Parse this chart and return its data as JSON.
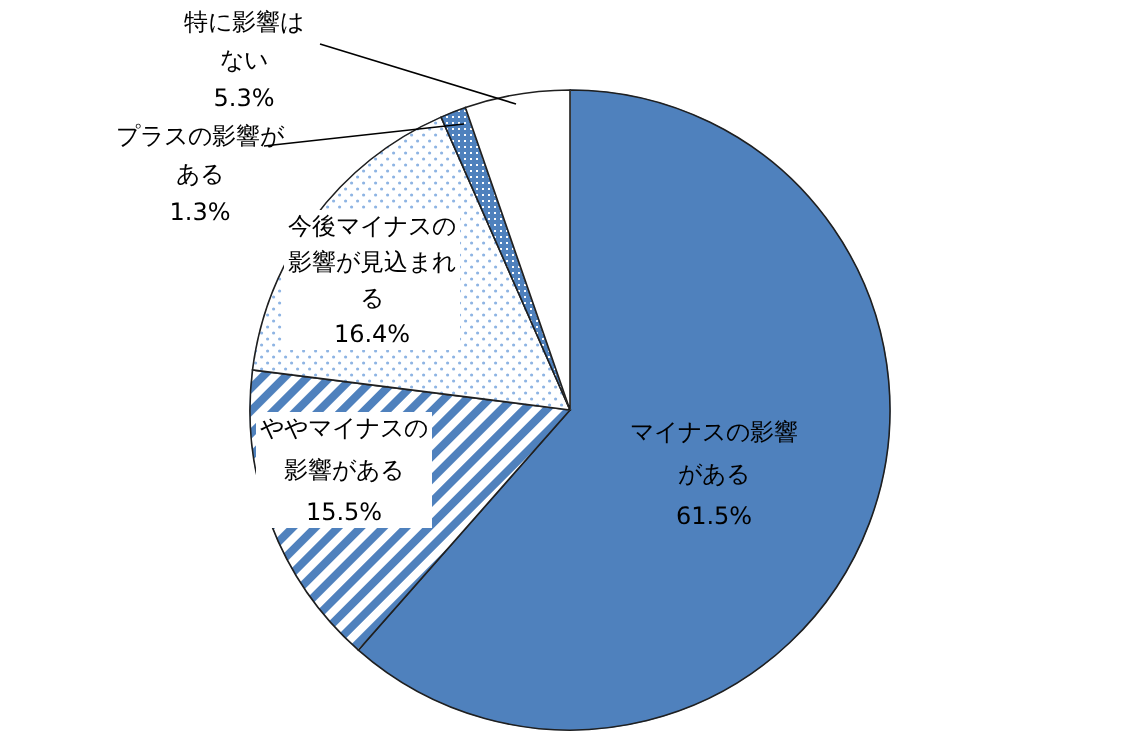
{
  "chart_data": {
    "type": "pie",
    "categories": [
      "マイナスの影響がある",
      "ややマイナスの影響がある",
      "今後マイナスの影響が見込まれる",
      "プラスの影響がある",
      "特に影響はない"
    ],
    "values": [
      61.5,
      15.5,
      16.4,
      1.3,
      5.3
    ],
    "value_labels": [
      "61.5%",
      "15.5%",
      "16.4%",
      "1.3%",
      "5.3%"
    ],
    "colors": [
      "#4f81bd",
      "#4f81bd",
      "#8eb4e3",
      "#4f81bd",
      "#ffffff"
    ]
  }
}
